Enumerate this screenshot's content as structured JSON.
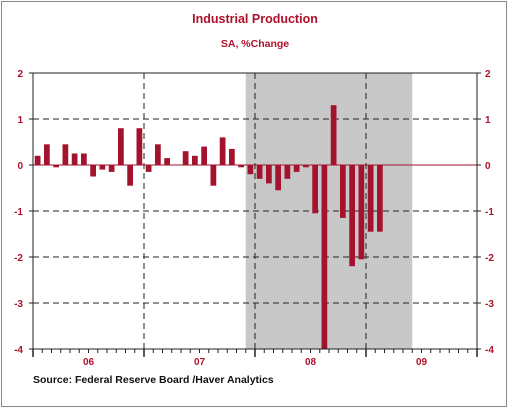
{
  "title": "Industrial Production",
  "subtitle": "SA, %Change",
  "source": "Source:  Federal Reserve Board /Haver Analytics",
  "colors": {
    "title": "#b0102a",
    "bar": "#a3132d",
    "axis_labels": "#b0102a",
    "zero_line": "#a3132d",
    "recession_shade": "#c8c8c8",
    "grid": "#222222"
  },
  "chart_data": {
    "type": "bar",
    "frequency": "monthly",
    "x_start": "2006-01",
    "x_tick_labels": [
      "06",
      "07",
      "08",
      "09"
    ],
    "y_tick_labels": [
      "2",
      "1",
      "0",
      "-1",
      "-2",
      "-3",
      "-4"
    ],
    "ylim": [
      -4,
      2
    ],
    "grid": true,
    "recession_shading": {
      "start": "2007-12",
      "end": "2009-06"
    },
    "categories": [
      "2006-01",
      "2006-02",
      "2006-03",
      "2006-04",
      "2006-05",
      "2006-06",
      "2006-07",
      "2006-08",
      "2006-09",
      "2006-10",
      "2006-11",
      "2006-12",
      "2007-01",
      "2007-02",
      "2007-03",
      "2007-04",
      "2007-05",
      "2007-06",
      "2007-07",
      "2007-08",
      "2007-09",
      "2007-10",
      "2007-11",
      "2007-12",
      "2008-01",
      "2008-02",
      "2008-03",
      "2008-04",
      "2008-05",
      "2008-06",
      "2008-07",
      "2008-08",
      "2008-09",
      "2008-10",
      "2008-11",
      "2008-12",
      "2009-01",
      "2009-02",
      "2009-03"
    ],
    "values": [
      0.2,
      0.45,
      -0.05,
      0.45,
      0.25,
      0.25,
      -0.25,
      -0.1,
      -0.15,
      0.8,
      -0.45,
      0.8,
      -0.15,
      0.45,
      0.15,
      0.0,
      0.3,
      0.2,
      0.4,
      -0.45,
      0.6,
      0.35,
      -0.05,
      -0.2,
      -0.3,
      -0.4,
      -0.55,
      -0.3,
      -0.15,
      -0.05,
      -1.05,
      -4.0,
      1.3,
      -1.15,
      -2.2,
      -2.05,
      -1.45,
      -1.45,
      0.0
    ]
  }
}
